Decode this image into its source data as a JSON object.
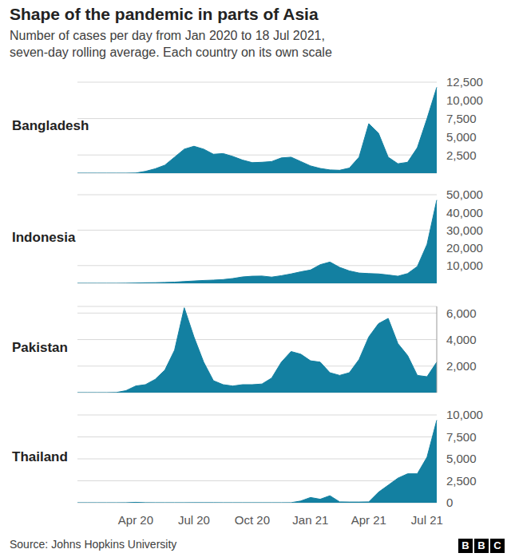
{
  "title": "Shape of the pandemic in parts of Asia",
  "subtitle": [
    "Number of cases per day from Jan 2020 to 18 Jul 2021,",
    "seven-day rolling average. Each country on its own scale"
  ],
  "source": "Source: Johns Hopkins University",
  "logo": "BBC",
  "chart_data": [
    {
      "type": "area",
      "title": "Bangladesh",
      "color": "#1380a1",
      "grid": true,
      "tick_labels": "y",
      "categories": [
        null,
        null,
        null,
        null,
        null,
        null,
        "Apr 20",
        null,
        null,
        null,
        null,
        null,
        "Jul 20",
        null,
        null,
        null,
        null,
        null,
        "Oct 20",
        null,
        null,
        null,
        null,
        null,
        "Jan 21",
        null,
        null,
        null,
        null,
        null,
        "Apr 21",
        null,
        null,
        null,
        null,
        null,
        "Jul 21",
        null
      ],
      "values": [
        0,
        0,
        0,
        0,
        0,
        0,
        20,
        250,
        600,
        1100,
        2200,
        3300,
        3700,
        3300,
        2600,
        2700,
        2300,
        1800,
        1450,
        1500,
        1600,
        2100,
        2200,
        1600,
        1000,
        650,
        450,
        400,
        700,
        2200,
        6800,
        5500,
        2200,
        1300,
        1500,
        3500,
        7500,
        11800
      ],
      "ylim": [
        0,
        12500
      ],
      "yticks": [
        0,
        {
          "value": 2500,
          "label": "2,500"
        },
        {
          "value": 5000,
          "label": "5,000"
        },
        {
          "value": 7500,
          "label": "7,500"
        },
        {
          "value": 10000,
          "label": "10,000"
        },
        {
          "value": 12500,
          "label": "12,500"
        }
      ]
    },
    {
      "type": "area",
      "title": "Indonesia",
      "color": "#1380a1",
      "grid": true,
      "tick_labels": "y",
      "categories": [
        null,
        null,
        null,
        null,
        null,
        null,
        "Apr 20",
        null,
        null,
        null,
        null,
        null,
        "Jul 20",
        null,
        null,
        null,
        null,
        null,
        "Oct 20",
        null,
        null,
        null,
        null,
        null,
        "Jan 21",
        null,
        null,
        null,
        null,
        null,
        "Apr 21",
        null,
        null,
        null,
        null,
        null,
        "Jul 21",
        null
      ],
      "values": [
        0,
        0,
        0,
        0,
        0,
        50,
        150,
        300,
        350,
        500,
        650,
        1000,
        1300,
        1600,
        1800,
        2100,
        2700,
        3600,
        4000,
        4100,
        3500,
        4300,
        5300,
        6500,
        7500,
        10500,
        12000,
        9000,
        7000,
        5800,
        5500,
        5300,
        4700,
        4000,
        5500,
        9500,
        22000,
        47000
      ],
      "ylim": [
        0,
        50000
      ],
      "yticks": [
        0,
        {
          "value": 10000,
          "label": "10,000"
        },
        {
          "value": 20000,
          "label": "20,000"
        },
        {
          "value": 30000,
          "label": "30,000"
        },
        {
          "value": 40000,
          "label": "40,000"
        },
        {
          "value": 50000,
          "label": "50,000"
        }
      ]
    },
    {
      "type": "area",
      "title": "Pakistan",
      "color": "#1380a1",
      "grid": true,
      "tick_labels": "y",
      "categories": [
        null,
        null,
        null,
        null,
        null,
        null,
        "Apr 20",
        null,
        null,
        null,
        null,
        null,
        "Jul 20",
        null,
        null,
        null,
        null,
        null,
        "Oct 20",
        null,
        null,
        null,
        null,
        null,
        "Jan 21",
        null,
        null,
        null,
        null,
        null,
        "Apr 21",
        null,
        null,
        null,
        null,
        null,
        "Jul 21",
        null
      ],
      "values": [
        0,
        0,
        0,
        0,
        10,
        150,
        500,
        600,
        1000,
        1700,
        3200,
        6400,
        4200,
        2300,
        900,
        600,
        500,
        600,
        600,
        650,
        1100,
        2300,
        3100,
        2900,
        2400,
        2300,
        1500,
        1300,
        1500,
        2500,
        4200,
        5200,
        5600,
        3700,
        2800,
        1300,
        1200,
        2300
      ],
      "ylim": [
        0,
        6500
      ],
      "yticks": [
        0,
        {
          "value": 2000,
          "label": "2,000"
        },
        {
          "value": 4000,
          "label": "4,000"
        },
        {
          "value": 6000,
          "label": "6,000"
        }
      ]
    },
    {
      "type": "area",
      "title": "Thailand",
      "color": "#1380a1",
      "grid": true,
      "categories": [
        null,
        null,
        null,
        null,
        null,
        null,
        "Apr 20",
        null,
        null,
        null,
        null,
        null,
        "Jul 20",
        null,
        null,
        null,
        null,
        null,
        "Oct 20",
        null,
        null,
        null,
        null,
        null,
        "Jan 21",
        null,
        null,
        null,
        null,
        null,
        "Apr 21",
        null,
        null,
        null,
        null,
        null,
        "Jul 21",
        null
      ],
      "values": [
        0,
        0,
        0,
        0,
        0,
        5,
        50,
        10,
        5,
        5,
        5,
        5,
        10,
        10,
        10,
        5,
        5,
        5,
        5,
        5,
        5,
        5,
        10,
        200,
        600,
        400,
        800,
        100,
        80,
        80,
        100,
        1200,
        2000,
        2800,
        3300,
        3300,
        5200,
        9400
      ],
      "ylim": [
        0,
        10000
      ],
      "yticks": [
        0,
        {
          "value": 2500,
          "label": "2,500"
        },
        {
          "value": 5000,
          "label": "5,000"
        },
        {
          "value": 7500,
          "label": "7,500"
        },
        {
          "value": 10000,
          "label": "10,000"
        }
      ]
    }
  ]
}
